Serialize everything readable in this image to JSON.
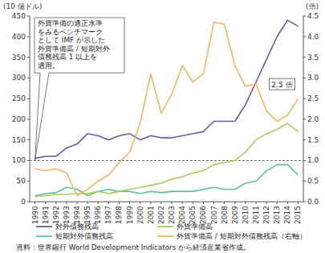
{
  "chart_data": {
    "type": "line",
    "y_label": "(10 億ドル)",
    "y2_label": "(倍)",
    "categories": [
      "1990",
      "1991",
      "1992",
      "1993",
      "1994",
      "1995",
      "1996",
      "1997",
      "1998",
      "1999",
      "2000",
      "2001",
      "2002",
      "2003",
      "2004",
      "2005",
      "2006",
      "2007",
      "2008",
      "2009",
      "2010",
      "2011",
      "2012",
      "2013",
      "2014",
      "2015"
    ],
    "series": [
      {
        "name": "対外債務残高",
        "color": "#6a5aa8",
        "values": [
          105,
          110,
          110,
          130,
          140,
          165,
          160,
          150,
          160,
          165,
          150,
          160,
          155,
          155,
          160,
          165,
          170,
          195,
          195,
          195,
          235,
          290,
          345,
          400,
          440,
          425
        ]
      },
      {
        "name": "短期対外債務残高",
        "color": "#5fbf9e",
        "values": [
          15,
          20,
          22,
          35,
          30,
          15,
          25,
          30,
          25,
          25,
          20,
          25,
          22,
          25,
          25,
          25,
          30,
          35,
          30,
          30,
          45,
          50,
          75,
          90,
          90,
          65
        ]
      },
      {
        "name": "外貨準備高",
        "color": "#a8cd5c",
        "values": [
          12,
          15,
          18,
          18,
          20,
          20,
          25,
          20,
          25,
          30,
          35,
          40,
          45,
          55,
          60,
          70,
          75,
          90,
          95,
          100,
          120,
          150,
          165,
          175,
          190,
          170
        ]
      },
      {
        "name": "外貨準備高 / 短期対外債務残高（右軸）",
        "color": "#f1b563",
        "axis": "y2",
        "values": [
          0.8,
          0.75,
          0.8,
          0.7,
          0.15,
          0.3,
          0.5,
          0.65,
          0.95,
          1.2,
          1.9,
          3.1,
          2.15,
          2.6,
          3.3,
          2.9,
          3.1,
          4.35,
          4.3,
          3.3,
          2.8,
          2.85,
          2.2,
          1.95,
          2.1,
          2.5
        ]
      }
    ],
    "ylim": [
      0,
      450
    ],
    "yticks": [
      0,
      50,
      100,
      150,
      200,
      250,
      300,
      350,
      400,
      450
    ],
    "y2lim": [
      0,
      4.5
    ],
    "y2ticks": [
      {
        "value": 0,
        "label": "0.0"
      },
      {
        "value": 0.5,
        "label": "0.5"
      },
      {
        "value": 1,
        "label": "1.0"
      },
      {
        "value": 1.5,
        "label": "1.5"
      },
      {
        "value": 2,
        "label": "2.0"
      },
      {
        "value": 2.5,
        "label": "2.5"
      },
      {
        "value": 3,
        "label": "3.0"
      },
      {
        "value": 3.5,
        "label": "3.5"
      },
      {
        "value": 4,
        "label": "4.0"
      },
      {
        "value": 4.5,
        "label": "4.5"
      }
    ],
    "benchmark": 1,
    "annotation": [
      "外貨準備の適正水準",
      "をみるベンチマーク",
      "として IMF が示した",
      "外貨準備高 / 短期対外",
      "債務残高 1 以上を",
      "適用。"
    ],
    "end_label": "2.5 倍",
    "source": "資料：世界銀行 World Development Indicators から経済産業省作成。",
    "grid": false,
    "legend": "bottom"
  }
}
